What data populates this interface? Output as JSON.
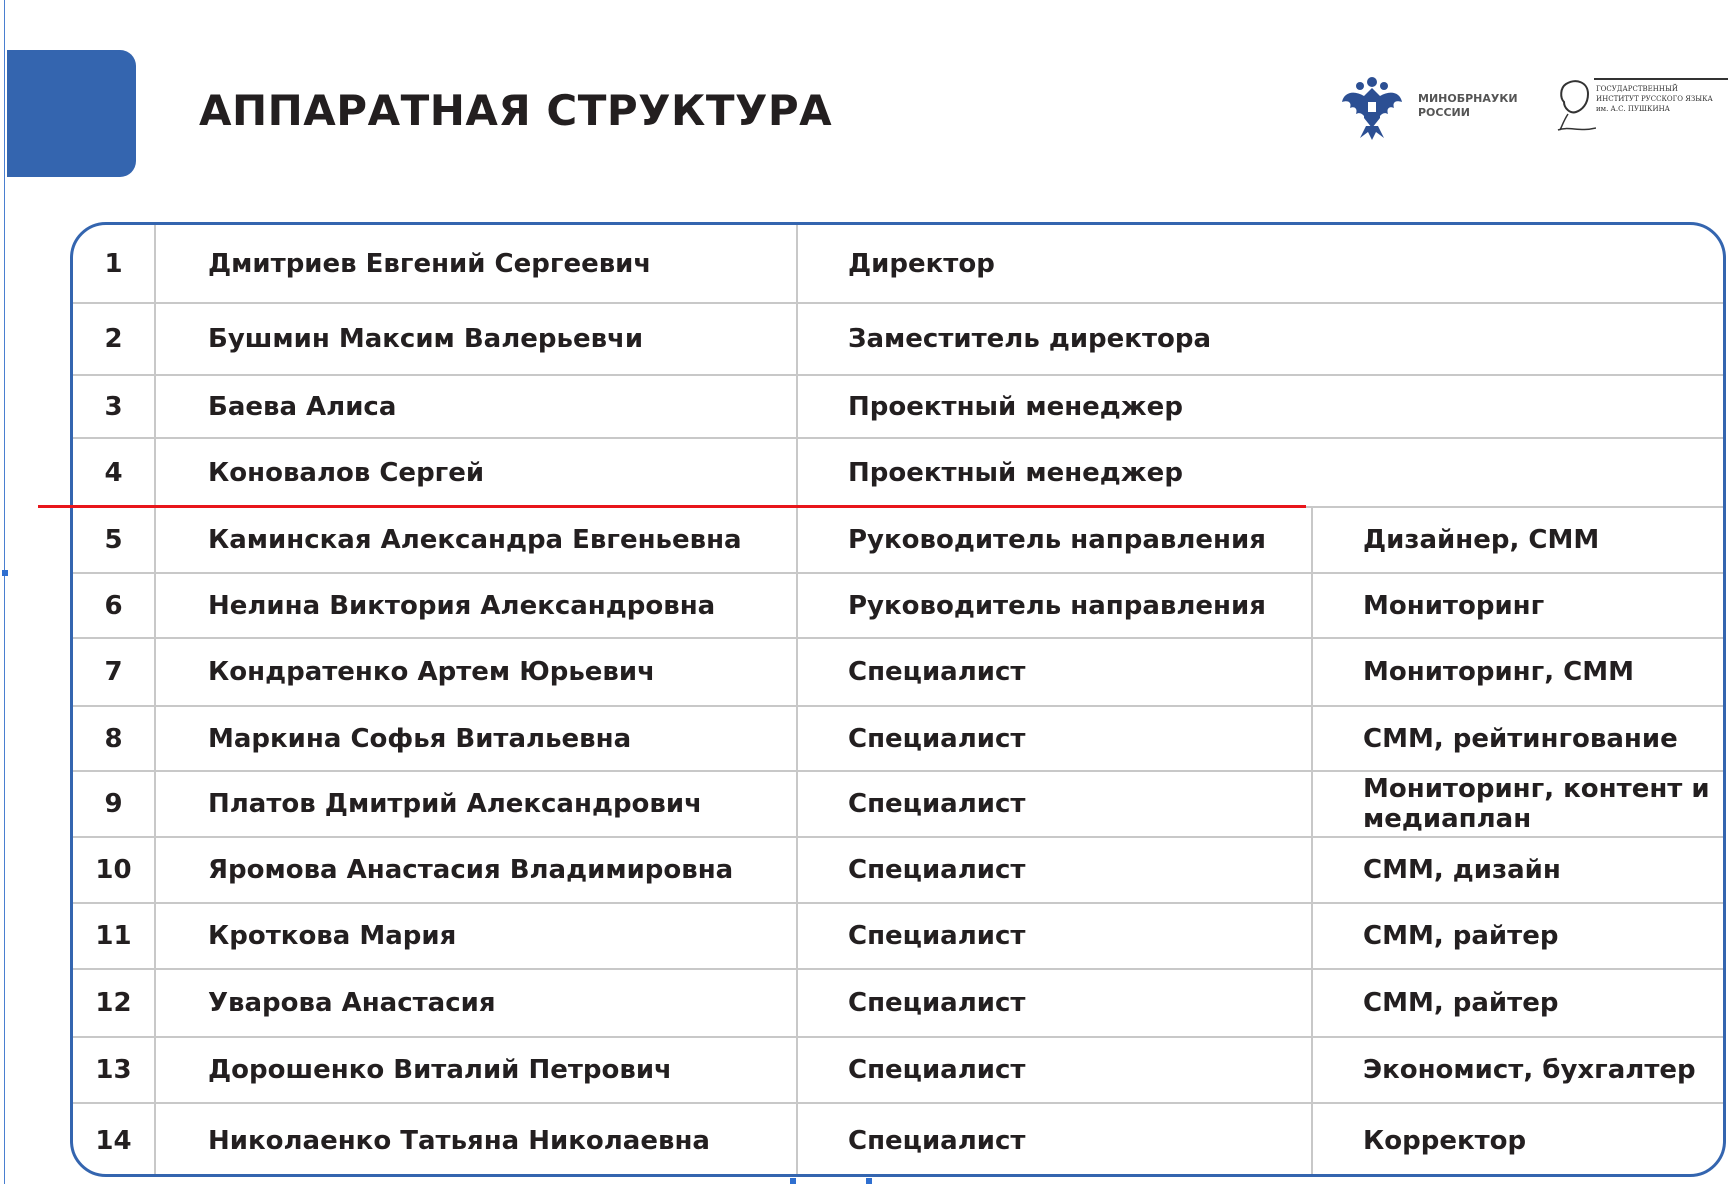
{
  "header": {
    "title": "АППАРАТНАЯ СТРУКТУРА",
    "accent_color": "#3465af",
    "logos": [
      {
        "icon": "russian-eagle-emblem",
        "text_lines": [
          "МИНОБРНАУКИ",
          "РОССИИ"
        ]
      },
      {
        "icon": "pushkin-portrait",
        "text_lines": [
          "ГОСУДАРСТВЕННЫЙ",
          "ИНСТИТУТ РУССКОГО ЯЗЫКА",
          "им. А.С. ПУШКИНА"
        ]
      }
    ]
  },
  "annotation": {
    "color": "#e8161b"
  },
  "table": {
    "rows": [
      {
        "num": "1",
        "name": "Дмитриев Евгений Сергеевич",
        "position": "Директор",
        "area": ""
      },
      {
        "num": "2",
        "name": "Бушмин Максим Валерьевчи",
        "position": "Заместитель директора",
        "area": ""
      },
      {
        "num": "3",
        "name": "Баева Алиса",
        "position": "Проектный менеджер",
        "area": ""
      },
      {
        "num": "4",
        "name": "Коновалов Сергей",
        "position": "Проектный менеджер",
        "area": ""
      },
      {
        "num": "5",
        "name": "Каминская Александра Евгеньевна",
        "position": "Руководитель направления",
        "area": "Дизайнер, СММ"
      },
      {
        "num": "6",
        "name": "Нелина Виктория Александровна",
        "position": "Руководитель направления",
        "area": "Мониторинг"
      },
      {
        "num": "7",
        "name": "Кондратенко Артем Юрьевич",
        "position": "Специалист",
        "area": "Мониторинг, СММ"
      },
      {
        "num": "8",
        "name": "Маркина Софья Витальевна",
        "position": "Специалист",
        "area": "СММ, рейтингование"
      },
      {
        "num": "9",
        "name": "Платов Дмитрий Александрович",
        "position": "Специалист",
        "area": "Мониторинг, контент и медиаплан"
      },
      {
        "num": "10",
        "name": "Яромова Анастасия Владимировна",
        "position": "Специалист",
        "area": "СММ, дизайн"
      },
      {
        "num": "11",
        "name": "Кроткова Мария",
        "position": "Специалист",
        "area": "СММ, райтер"
      },
      {
        "num": "12",
        "name": "Уварова Анастасия",
        "position": "Специалист",
        "area": "СММ, райтер"
      },
      {
        "num": "13",
        "name": "Дорошенко Виталий Петрович",
        "position": "Специалист",
        "area": "Экономист, бухгалтер"
      },
      {
        "num": "14",
        "name": "Николаенко Татьяна Николаевна",
        "position": "Специалист",
        "area": "Корректор"
      }
    ]
  }
}
